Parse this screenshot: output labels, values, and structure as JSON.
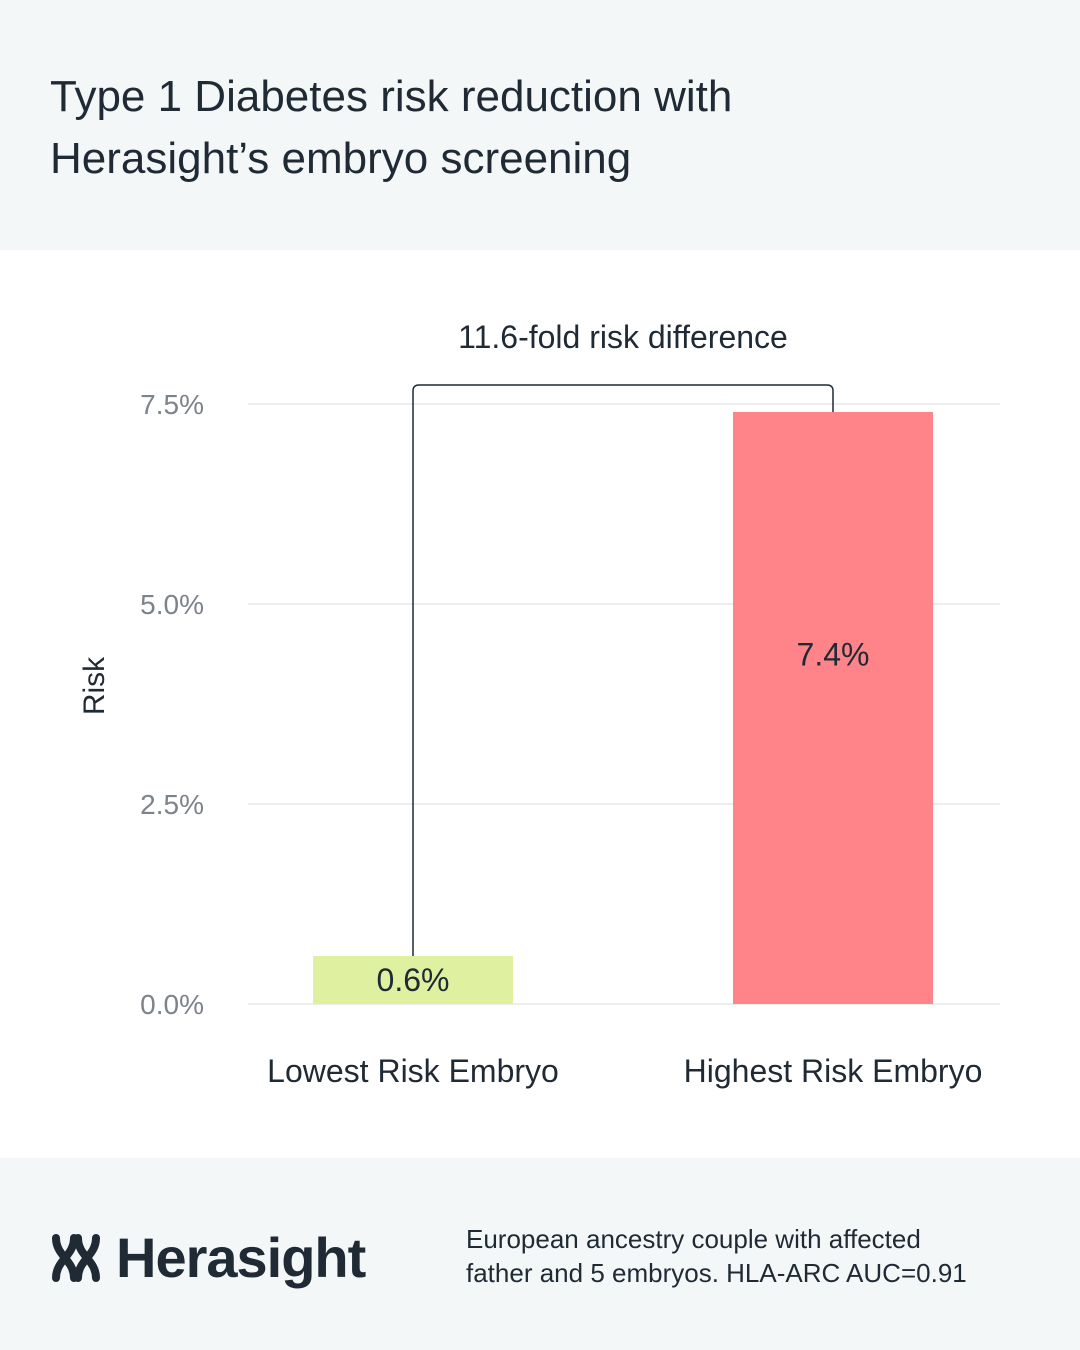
{
  "header": {
    "title_line1": "Type 1 Diabetes risk reduction with",
    "title_line2": "Herasight’s embryo screening"
  },
  "chart_data": {
    "type": "bar",
    "categories": [
      "Lowest Risk Embryo",
      "Highest Risk Embryo"
    ],
    "values": [
      0.6,
      7.4
    ],
    "value_labels": [
      "0.6%",
      "7.4%"
    ],
    "bar_colors": [
      "#dff0a0",
      "#ff8489"
    ],
    "ylabel": "Risk",
    "xlabel": "",
    "ylim": [
      0,
      7.5
    ],
    "yticks": [
      0.0,
      2.5,
      5.0,
      7.5
    ],
    "ytick_labels": [
      "0.0%",
      "2.5%",
      "5.0%",
      "7.5%"
    ],
    "grid": true,
    "annotation": "11.6-fold risk difference"
  },
  "footer": {
    "brand": "Herasight",
    "brand_icon": "herasight-logo-icon",
    "note_line1": "European ancestry couple with affected",
    "note_line2": "father and 5 embryos. HLA-ARC AUC=0.91"
  },
  "colors": {
    "text": "#1f2a35",
    "panel_bg": "#f4f7f8",
    "axis_text": "#7d838a",
    "grid": "#dadde0"
  }
}
